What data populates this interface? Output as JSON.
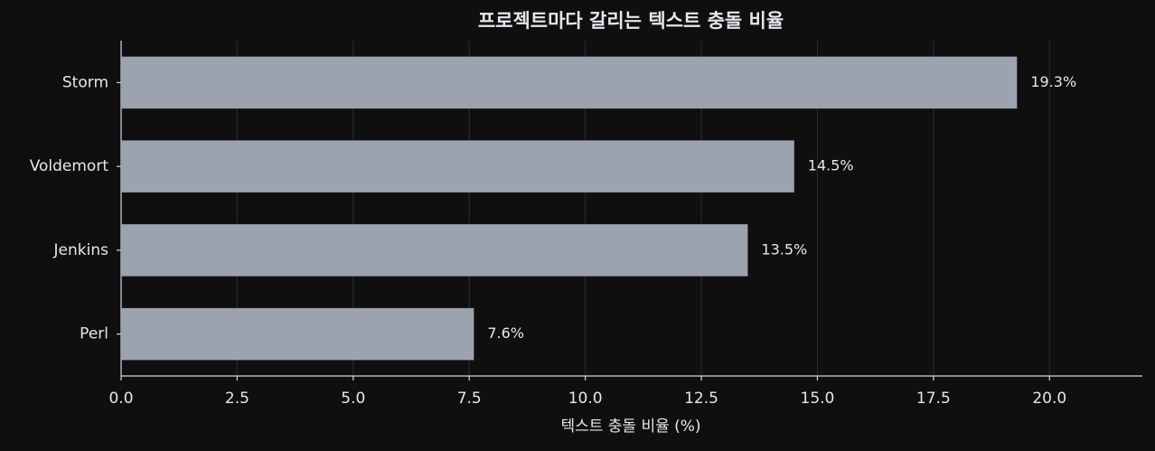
{
  "chart_data": {
    "type": "barh",
    "title": "프로젝트마다 갈리는 텍스트 충돌 비율",
    "xlabel": "텍스트 충돌 비율 (%)",
    "categories": [
      "Storm",
      "Voldemort",
      "Jenkins",
      "Perl"
    ],
    "values": [
      19.3,
      14.5,
      13.5,
      7.6
    ],
    "value_labels": [
      "19.3%",
      "14.5%",
      "13.5%",
      "7.6%"
    ],
    "color": "#9ca3af",
    "xlim": [
      0,
      22
    ],
    "xticks": [
      {
        "value": 0,
        "label": "0.0"
      },
      2.5,
      {
        "value": 5,
        "label": "5.0"
      },
      7.5,
      {
        "value": 10,
        "label": "10.0"
      },
      12.5,
      {
        "value": 15,
        "label": "15.0"
      },
      17.5,
      {
        "value": 20,
        "label": "20.0"
      }
    ],
    "grid": true
  }
}
